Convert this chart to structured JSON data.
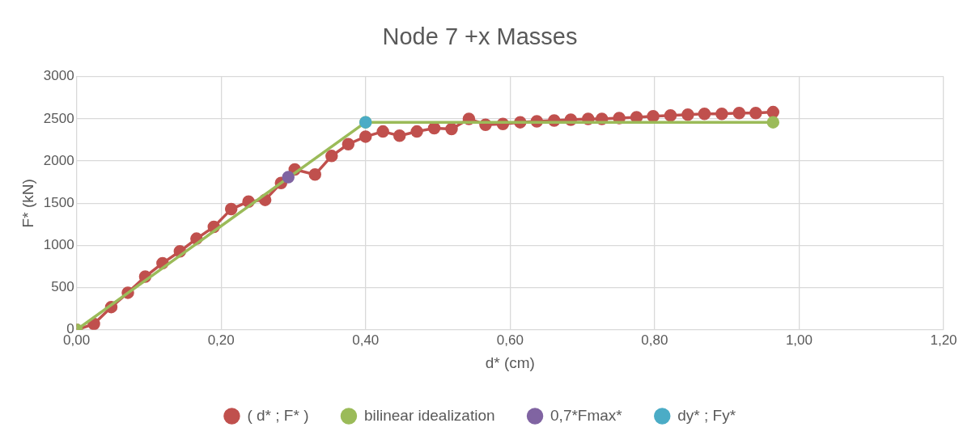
{
  "chart_data": {
    "type": "scatter",
    "title": "Node 7 +x Masses",
    "xlabel": "d* (cm)",
    "ylabel": "F* (kN)",
    "xlim": [
      0,
      1.2
    ],
    "xticks": [
      {
        "value": 0,
        "label": "0,00"
      },
      {
        "value": 0.2,
        "label": "0,20"
      },
      {
        "value": 0.4,
        "label": "0,40"
      },
      {
        "value": 0.6,
        "label": "0,60"
      },
      {
        "value": 0.8,
        "label": "0,80"
      },
      {
        "value": 1,
        "label": "1,00"
      },
      {
        "value": 1.2,
        "label": "1,20"
      }
    ],
    "ylim": [
      0,
      3000
    ],
    "yticks": [
      0,
      500,
      1000,
      1500,
      2000,
      2500,
      3000
    ],
    "grid": true,
    "legend": "bottom",
    "marker": "circle",
    "line_style": "solid",
    "series": [
      {
        "name": "( d* ; F* )",
        "type": "line",
        "color": "#c0504d",
        "x": [
          0,
          0.024,
          0.048,
          0.071,
          0.095,
          0.119,
          0.143,
          0.166,
          0.19,
          0.214,
          0.238,
          0.261,
          0.283,
          0.302,
          0.33,
          0.353,
          0.376,
          0.4,
          0.424,
          0.447,
          0.471,
          0.495,
          0.519,
          0.543,
          0.566,
          0.59,
          0.614,
          0.637,
          0.661,
          0.684,
          0.708,
          0.727,
          0.751,
          0.775,
          0.798,
          0.822,
          0.846,
          0.869,
          0.893,
          0.917,
          0.94,
          0.964
        ],
        "values": [
          0,
          70,
          270,
          440,
          630,
          790,
          930,
          1080,
          1220,
          1430,
          1520,
          1540,
          1740,
          1900,
          1840,
          2060,
          2200,
          2290,
          2350,
          2300,
          2350,
          2390,
          2380,
          2500,
          2430,
          2440,
          2460,
          2470,
          2480,
          2490,
          2500,
          2500,
          2510,
          2520,
          2530,
          2540,
          2550,
          2560,
          2560,
          2570,
          2570,
          2580
        ]
      },
      {
        "name": "bilinear idealization",
        "type": "line",
        "color": "#9bbb59",
        "x": [
          0,
          0.4,
          0.964
        ],
        "values": [
          0,
          2460,
          2460
        ]
      },
      {
        "name": "0,7*Fmax*",
        "type": "line",
        "color": "#8064a2",
        "x": [
          0.293
        ],
        "values": [
          1810
        ]
      },
      {
        "name": "dy* ; Fy*",
        "type": "line",
        "color": "#4bacc6",
        "x": [
          0.4
        ],
        "values": [
          2460
        ]
      }
    ]
  }
}
